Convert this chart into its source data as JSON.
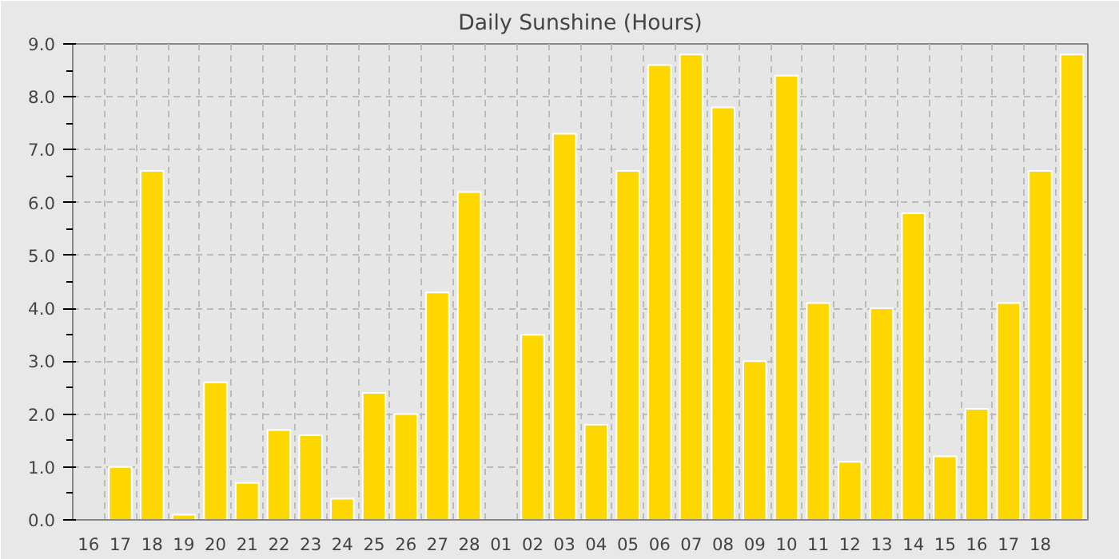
{
  "chart_data": {
    "type": "bar",
    "title": "Daily Sunshine (Hours)",
    "categories": [
      "16",
      "17",
      "18",
      "19",
      "20",
      "21",
      "22",
      "23",
      "24",
      "25",
      "26",
      "27",
      "28",
      "01",
      "02",
      "03",
      "04",
      "05",
      "06",
      "07",
      "08",
      "09",
      "10",
      "11",
      "12",
      "13",
      "14",
      "15",
      "16",
      "17",
      "18",
      null
    ],
    "values": [
      null,
      1.0,
      6.6,
      0.1,
      2.6,
      0.7,
      1.7,
      1.6,
      0.4,
      2.4,
      2.0,
      4.3,
      6.2,
      null,
      3.5,
      7.3,
      1.8,
      6.6,
      8.6,
      8.8,
      7.8,
      3.0,
      8.4,
      4.1,
      1.1,
      4.0,
      5.8,
      1.2,
      2.1,
      4.1,
      6.6,
      8.8
    ],
    "color": "#ffd700",
    "ylim": [
      0,
      9
    ],
    "yticks": [
      {
        "value": 0,
        "label": "0.0"
      },
      {
        "value": 1,
        "label": "1.0"
      },
      {
        "value": 2,
        "label": "2.0"
      },
      {
        "value": 3,
        "label": "3.0"
      },
      {
        "value": 4,
        "label": "4.0"
      },
      {
        "value": 5,
        "label": "5.0"
      },
      {
        "value": 6,
        "label": "6.0"
      },
      {
        "value": 7,
        "label": "7.0"
      },
      {
        "value": 8,
        "label": "8.0"
      },
      {
        "value": 9,
        "label": "9.0"
      }
    ],
    "grid": true
  }
}
